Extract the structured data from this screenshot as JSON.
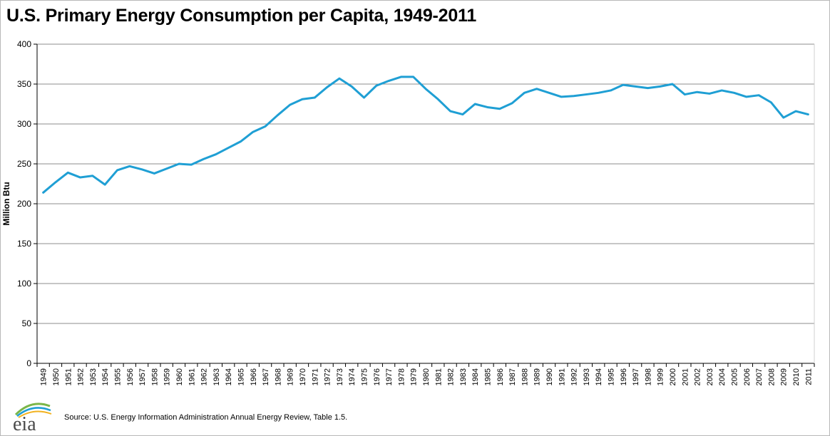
{
  "title": "U.S. Primary Energy Consumption per Capita, 1949-2011",
  "source": "Source: U.S. Energy Information Administration Annual Energy Review, Table 1.5.",
  "logo": {
    "text": "eia",
    "icon": "eia-logo",
    "colors": [
      "#1f9fd4",
      "#7ab648",
      "#f2b21f"
    ]
  },
  "colors": {
    "line": "#1f9fd4",
    "grid": "#8c8c8c",
    "axis": "#000000"
  },
  "chart_data": {
    "type": "line",
    "title": "U.S. Primary Energy Consumption per Capita, 1949-2011",
    "xlabel": "",
    "ylabel": "Million Btu",
    "ylim": [
      0,
      400
    ],
    "yticks": [
      0,
      50,
      100,
      150,
      200,
      250,
      300,
      350,
      400
    ],
    "grid": true,
    "x": [
      "1949",
      "1950",
      "1951",
      "1952",
      "1953",
      "1954",
      "1955",
      "1956",
      "1957",
      "1958",
      "1959",
      "1960",
      "1961",
      "1962",
      "1963",
      "1964",
      "1965",
      "1966",
      "1967",
      "1968",
      "1969",
      "1970",
      "1971",
      "1972",
      "1973",
      "1974",
      "1975",
      "1976",
      "1977",
      "1978",
      "1979",
      "1980",
      "1981",
      "1982",
      "1983",
      "1984",
      "1985",
      "1986",
      "1987",
      "1988",
      "1989",
      "1990",
      "1991",
      "1992",
      "1993",
      "1994",
      "1995",
      "1996",
      "1997",
      "1998",
      "1999",
      "2000",
      "2001",
      "2002",
      "2003",
      "2004",
      "2005",
      "2006",
      "2007",
      "2008",
      "2009",
      "2010",
      "2011"
    ],
    "series": [
      {
        "values": [
          214,
          227,
          239,
          233,
          235,
          224,
          242,
          247,
          243,
          238,
          244,
          250,
          249,
          256,
          262,
          270,
          278,
          290,
          297,
          311,
          324,
          331,
          333,
          346,
          357,
          347,
          333,
          348,
          354,
          359,
          359,
          344,
          331,
          316,
          312,
          325,
          321,
          319,
          326,
          339,
          344,
          339,
          334,
          335,
          337,
          339,
          342,
          349,
          347,
          345,
          347,
          350,
          337,
          340,
          338,
          342,
          339,
          334,
          336,
          327,
          308,
          316,
          312
        ]
      }
    ]
  }
}
